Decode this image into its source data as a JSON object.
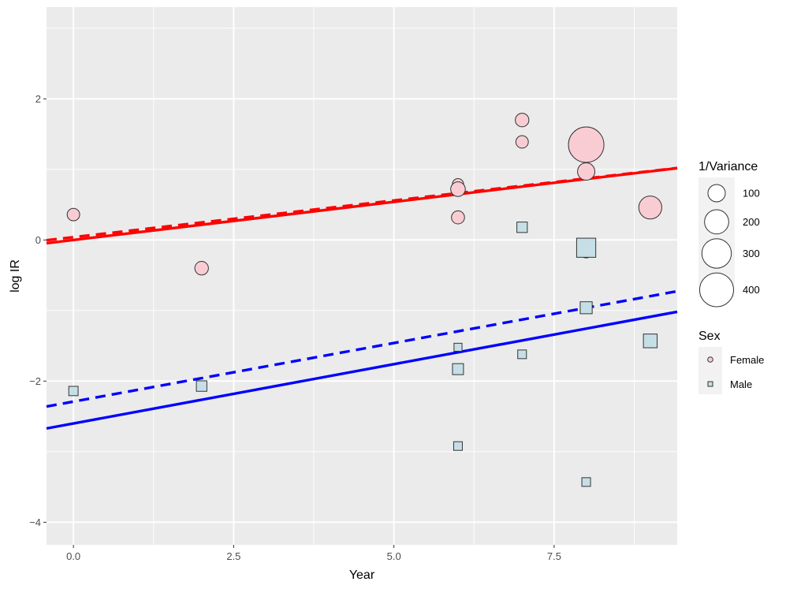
{
  "chart_data": {
    "type": "scatter",
    "xlabel": "Year",
    "ylabel": "log IR",
    "xlim": [
      -0.42,
      9.42
    ],
    "ylim": [
      -4.32,
      3.3
    ],
    "x_ticks": [
      0.0,
      2.5,
      5.0,
      7.5
    ],
    "x_tick_labels": [
      "0.0",
      "2.5",
      "5.0",
      "7.5"
    ],
    "y_ticks": [
      -4,
      -2,
      0,
      2
    ],
    "y_tick_labels": [
      "−4",
      "−2",
      "0",
      "2"
    ],
    "grid": true,
    "legends": {
      "size": {
        "title": "1/Variance",
        "entries": [
          {
            "label": "100",
            "value": 100
          },
          {
            "label": "200",
            "value": 200
          },
          {
            "label": "300",
            "value": 300
          },
          {
            "label": "400",
            "value": 400
          }
        ]
      },
      "sex": {
        "title": "Sex",
        "entries": [
          {
            "label": "Female",
            "shape": "circle",
            "fill": "#f9ccd3"
          },
          {
            "label": "Male",
            "shape": "square",
            "fill": "#c6dfe6"
          }
        ]
      }
    },
    "series": [
      {
        "name": "Female",
        "shape": "circle",
        "fill": "#f9ccd3",
        "points": [
          {
            "x": 0,
            "y": 0.36,
            "w": 50
          },
          {
            "x": 2,
            "y": -0.4,
            "w": 60
          },
          {
            "x": 6,
            "y": 0.79,
            "w": 40
          },
          {
            "x": 6,
            "y": 0.72,
            "w": 70
          },
          {
            "x": 6,
            "y": 0.32,
            "w": 55
          },
          {
            "x": 7,
            "y": 1.7,
            "w": 60
          },
          {
            "x": 7,
            "y": 1.39,
            "w": 50
          },
          {
            "x": 8,
            "y": 1.35,
            "w": 440
          },
          {
            "x": 8,
            "y": 0.97,
            "w": 100
          },
          {
            "x": 8,
            "y": -0.17,
            "w": 45
          },
          {
            "x": 9,
            "y": 0.46,
            "w": 180
          }
        ]
      },
      {
        "name": "Male",
        "shape": "square",
        "fill": "#c6dfe6",
        "points": [
          {
            "x": 0,
            "y": -2.14,
            "w": 35
          },
          {
            "x": 2,
            "y": -2.07,
            "w": 45
          },
          {
            "x": 6,
            "y": -1.52,
            "w": 25
          },
          {
            "x": 6,
            "y": -1.83,
            "w": 50
          },
          {
            "x": 6,
            "y": -2.92,
            "w": 30
          },
          {
            "x": 7,
            "y": 0.18,
            "w": 45
          },
          {
            "x": 7,
            "y": -1.62,
            "w": 30
          },
          {
            "x": 8,
            "y": -0.11,
            "w": 160
          },
          {
            "x": 8,
            "y": -0.96,
            "w": 60
          },
          {
            "x": 8,
            "y": -3.43,
            "w": 30
          },
          {
            "x": 9,
            "y": -1.43,
            "w": 80
          }
        ]
      }
    ],
    "lines": [
      {
        "group": "Female",
        "style": "solid",
        "color": "#ff0000",
        "intercept": 0.0,
        "slope": 0.108
      },
      {
        "group": "Female",
        "style": "dashed",
        "color": "#ff0000",
        "intercept": 0.04,
        "slope": 0.104
      },
      {
        "group": "Male",
        "style": "solid",
        "color": "#0000ff",
        "intercept": -2.6,
        "slope": 0.168
      },
      {
        "group": "Male",
        "style": "dashed",
        "color": "#0000ff",
        "intercept": -2.29,
        "slope": 0.166
      }
    ]
  }
}
